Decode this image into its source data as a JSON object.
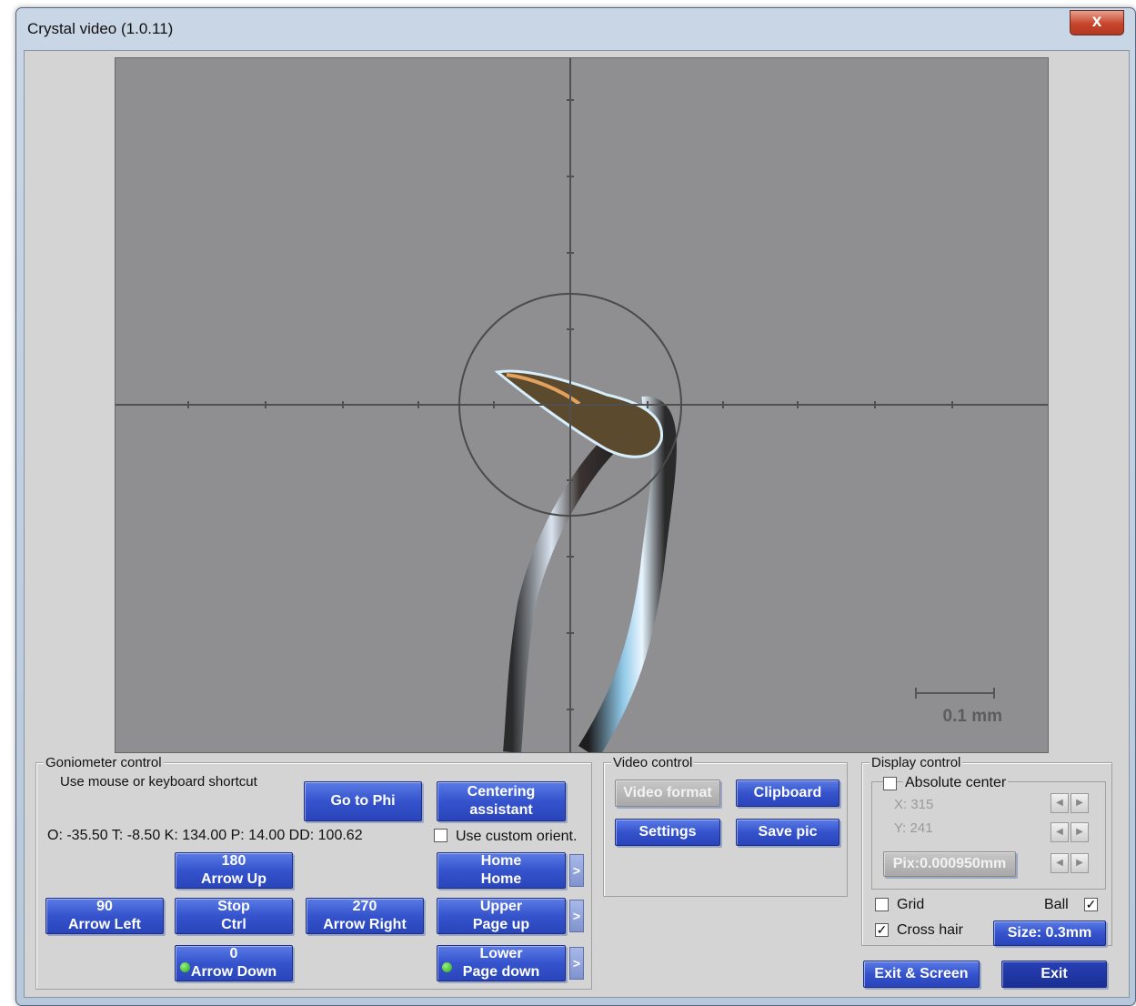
{
  "window": {
    "title": "Crystal video (1.0.11)",
    "close_glyph": "x"
  },
  "video": {
    "scale_bar_label": "0.1 mm"
  },
  "goniometer": {
    "legend": "Goniometer control",
    "hint": "Use mouse or keyboard shortcut",
    "go_to_phi": "Go to Phi",
    "centering": [
      "Centering",
      "assistant"
    ],
    "readout": "O: -35.50 T:  -8.50 K: 134.00 P:  14.00 DD: 100.62",
    "use_custom_orient": "Use custom orient.",
    "up": [
      "180",
      "Arrow Up"
    ],
    "left": [
      "90",
      "Arrow Left"
    ],
    "stop": [
      "Stop",
      "Ctrl"
    ],
    "right": [
      "270",
      "Arrow Right"
    ],
    "down": [
      "0",
      "Arrow Down"
    ],
    "home": [
      "Home",
      "Home"
    ],
    "upper": [
      "Upper",
      "Page up"
    ],
    "lower": [
      "Lower",
      "Page down"
    ],
    "chevron": ">"
  },
  "video_control": {
    "legend": "Video control",
    "video_format": "Video format",
    "clipboard": "Clipboard",
    "settings": "Settings",
    "save_pic": "Save pic"
  },
  "display_control": {
    "legend": "Display control",
    "absolute_center": "Absolute center",
    "x": "X: 315",
    "y": "Y: 241",
    "pix": "Pix:0.000950mm",
    "grid": "Grid",
    "ball": "Ball",
    "cross_hair": "Cross hair",
    "size": "Size: 0.3mm",
    "checked_mark": "✓"
  },
  "footer": {
    "exit_screen": "Exit & Screen",
    "exit": "Exit"
  }
}
